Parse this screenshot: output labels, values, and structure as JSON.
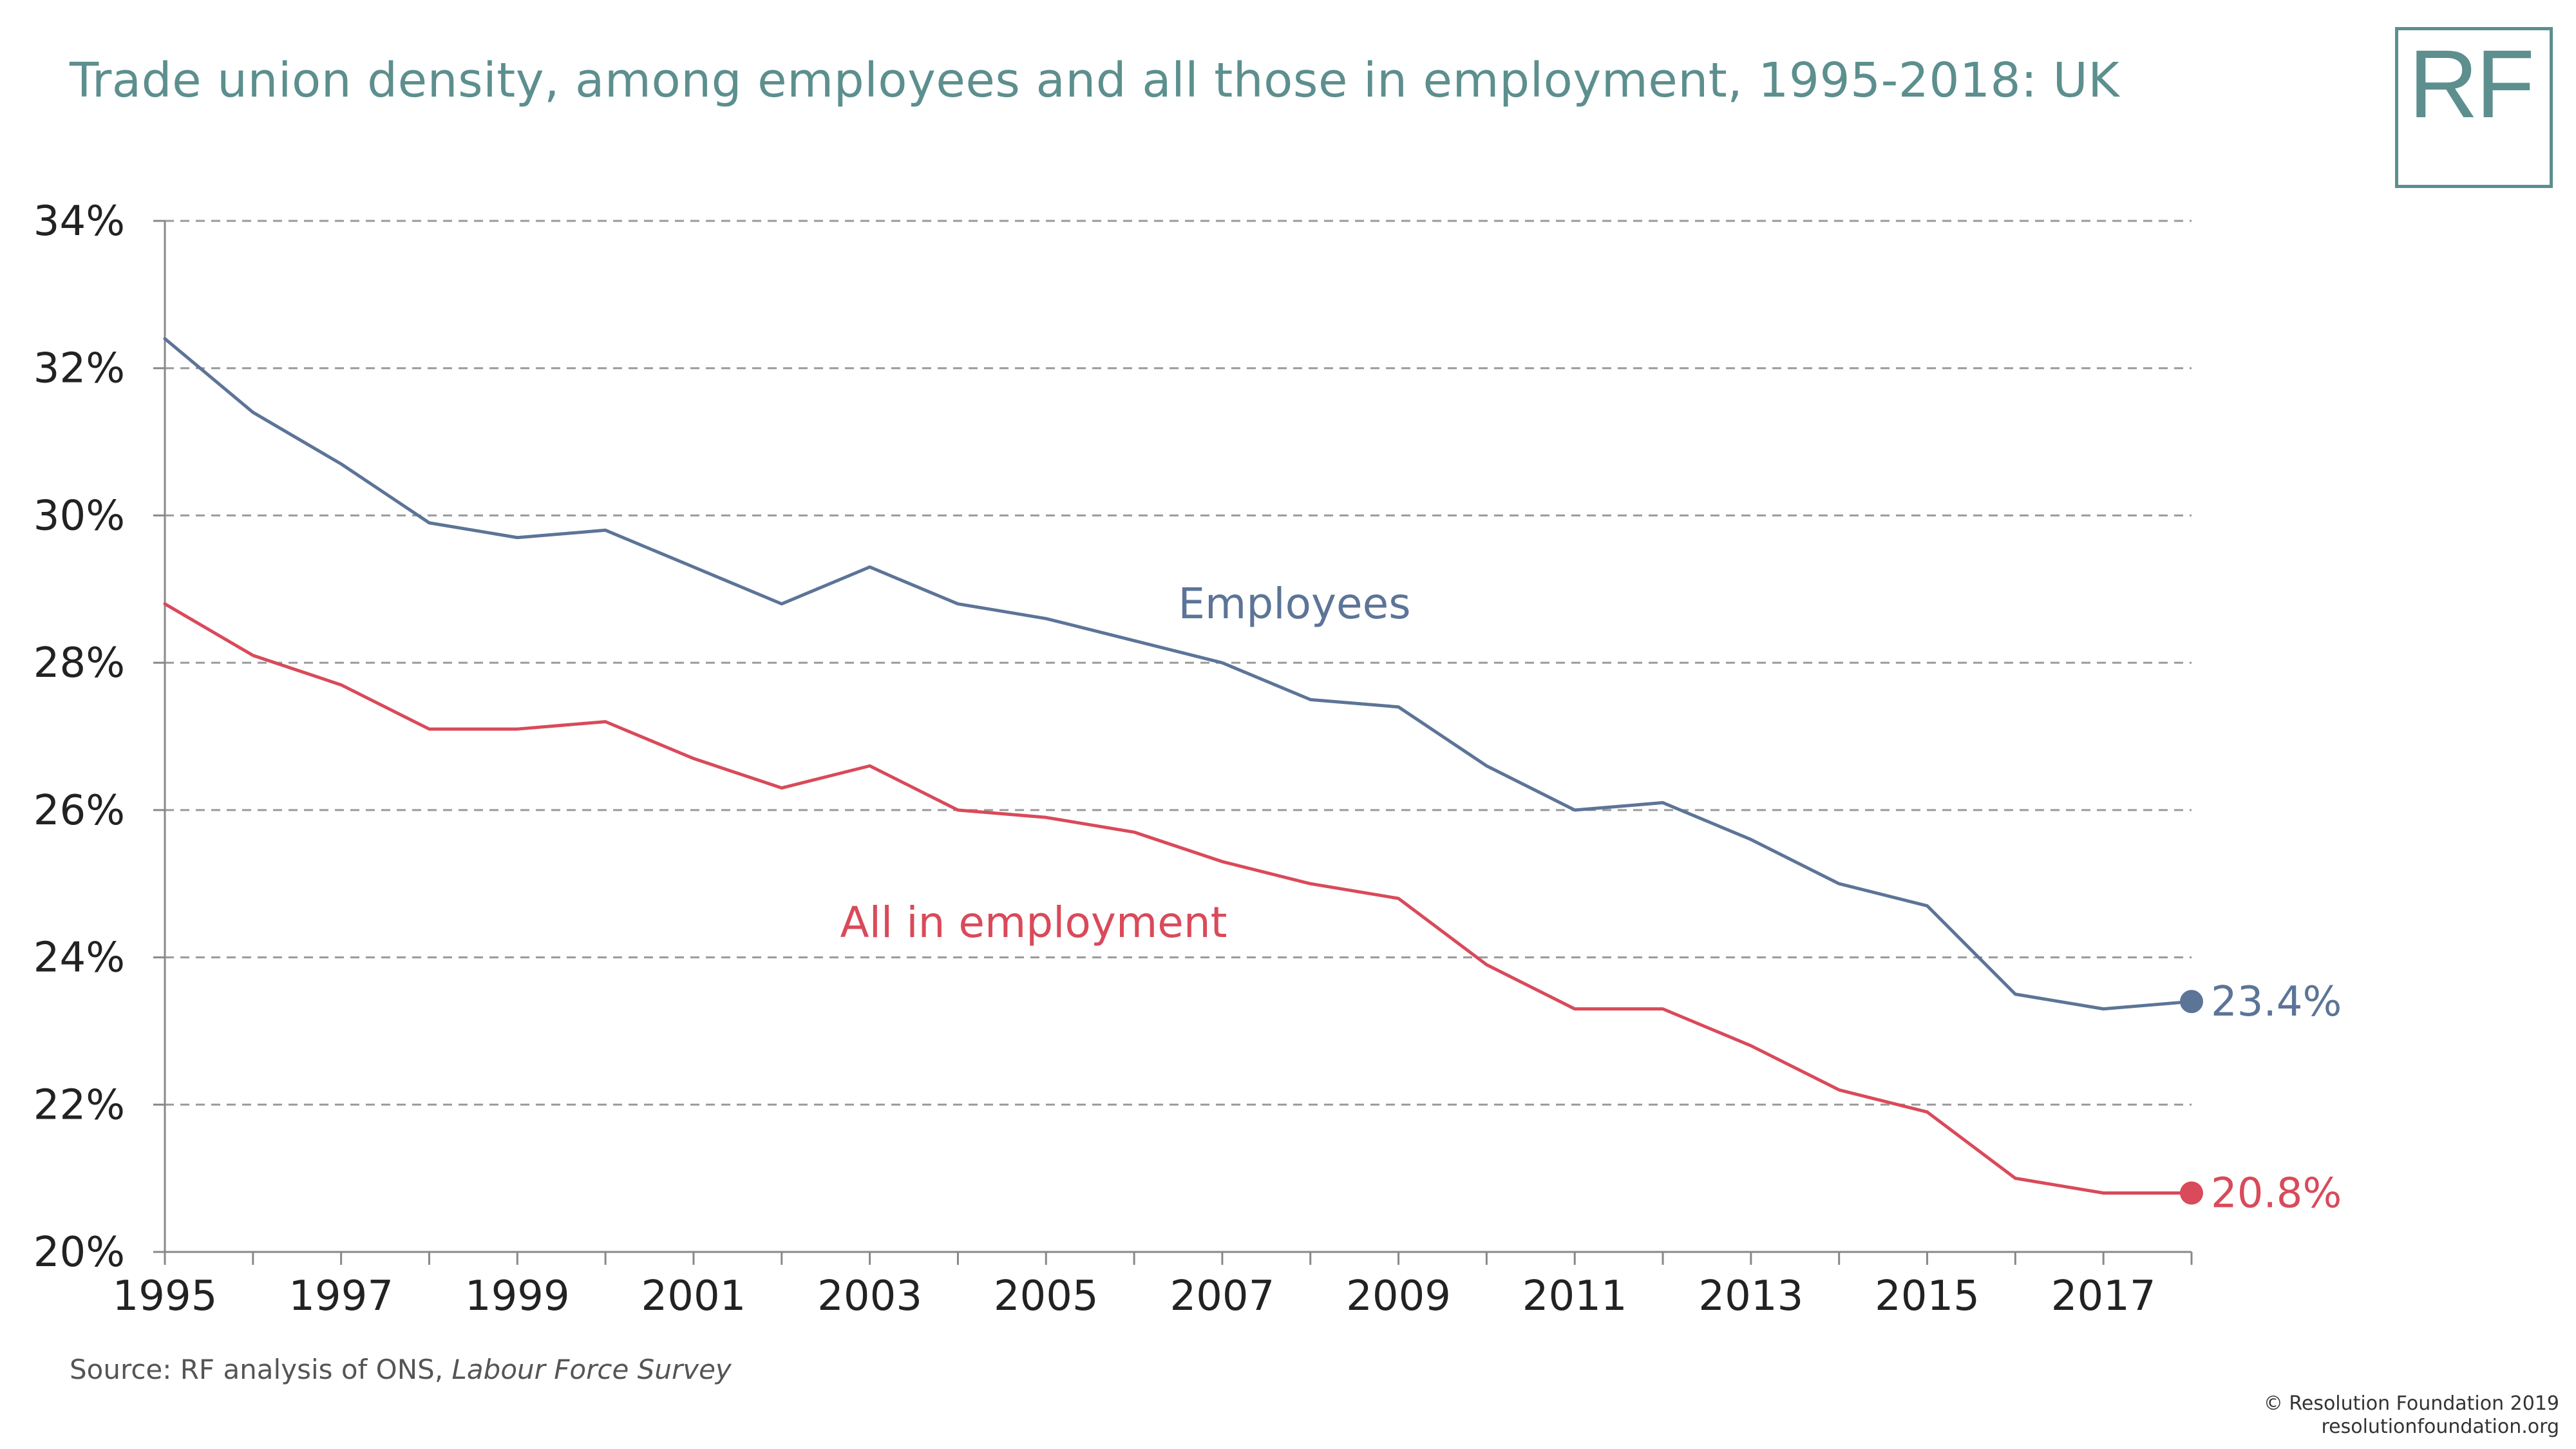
{
  "header": {
    "title": "Trade union density, among employees and all those in employment, 1995-2018: UK",
    "logo_text": "RF"
  },
  "footer": {
    "source_prefix": "Source: RF analysis of ONS, ",
    "source_italic": "Labour Force Survey",
    "copyright": "© Resolution Foundation 2019",
    "website": "resolutionfoundation.org"
  },
  "colors": {
    "title": "#5c8f8e",
    "employees": "#5c7497",
    "all_in_employment": "#d94a5a",
    "grid": "#9a9a9a"
  },
  "chart_data": {
    "type": "line",
    "title": "Trade union density, among employees and all those in employment, 1995-2018: UK",
    "xlabel": "",
    "ylabel": "",
    "x": [
      1995,
      1996,
      1997,
      1998,
      1999,
      2000,
      2001,
      2002,
      2003,
      2004,
      2005,
      2006,
      2007,
      2008,
      2009,
      2010,
      2011,
      2012,
      2013,
      2014,
      2015,
      2016,
      2017,
      2018
    ],
    "xlim": [
      1995,
      2018
    ],
    "ylim": [
      20,
      34
    ],
    "x_tick_labels": [
      "1995",
      "1997",
      "1999",
      "2001",
      "2003",
      "2005",
      "2007",
      "2009",
      "2011",
      "2013",
      "2015",
      "2017"
    ],
    "y_tick_labels": [
      "20%",
      "22%",
      "24%",
      "26%",
      "28%",
      "30%",
      "32%",
      "34%"
    ],
    "y_ticks": [
      20,
      22,
      24,
      26,
      28,
      30,
      32,
      34
    ],
    "grid": "horizontal dashed",
    "series": [
      {
        "name": "Employees",
        "color": "#5c7497",
        "values": [
          32.4,
          31.4,
          30.7,
          29.9,
          29.7,
          29.8,
          29.3,
          28.8,
          29.3,
          28.8,
          28.6,
          28.3,
          28.0,
          27.5,
          27.4,
          26.6,
          26.0,
          26.1,
          25.6,
          25.0,
          24.7,
          23.5,
          23.3,
          23.4
        ],
        "end_label": "23.4%"
      },
      {
        "name": "All in employment",
        "color": "#d94a5a",
        "values": [
          28.8,
          28.1,
          27.7,
          27.1,
          27.1,
          27.2,
          26.7,
          26.3,
          26.6,
          26.0,
          25.9,
          25.7,
          25.3,
          25.0,
          24.8,
          23.9,
          23.3,
          23.3,
          22.8,
          22.2,
          21.9,
          21.0,
          20.8,
          20.8
        ],
        "end_label": "20.8%"
      }
    ]
  }
}
